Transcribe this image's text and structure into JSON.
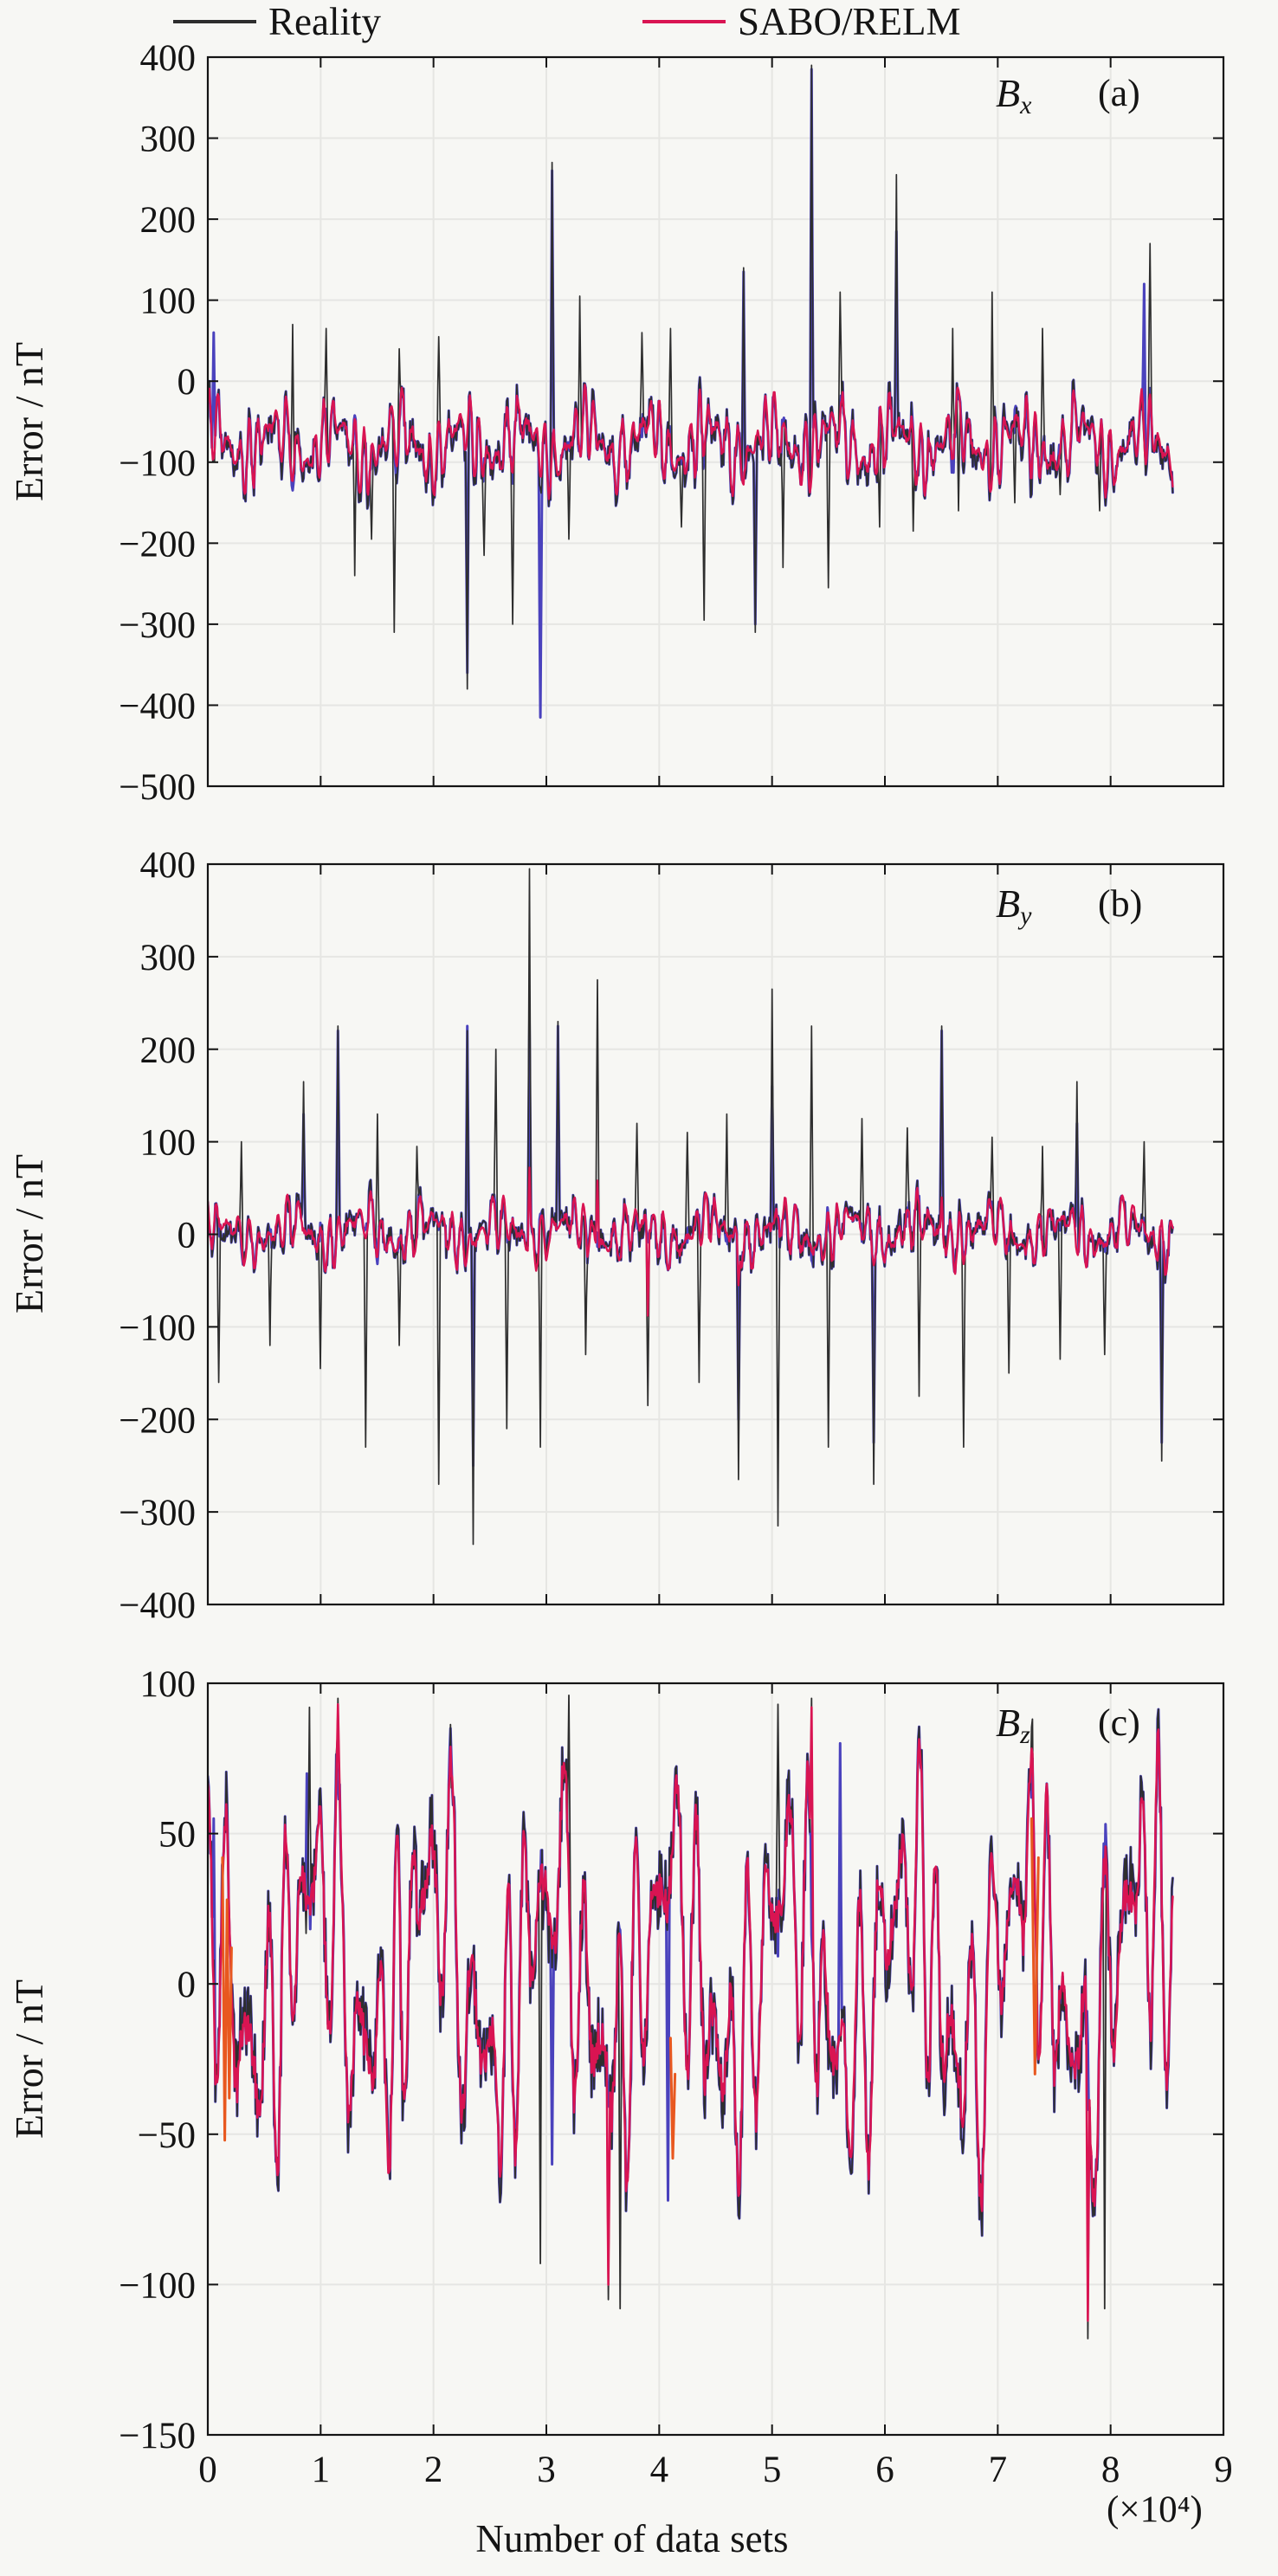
{
  "figure": {
    "background": "#f7f7f4",
    "axis_color": "#141414",
    "grid_color": "#e6e6e3",
    "ylabel": "Error / nT"
  },
  "legend": {
    "position": "top",
    "items": [
      {
        "label": "Reality",
        "color": "#2e2e2e"
      },
      {
        "label": "SABO/RELM",
        "color": "#d91452"
      }
    ]
  },
  "xaxis": {
    "label": "Number of data sets",
    "multiplier": "(×10⁴)",
    "ticks": [
      0,
      1,
      2,
      3,
      4,
      5,
      6,
      7,
      8,
      9
    ],
    "range": [
      0,
      9
    ],
    "data_xmax": 8.55
  },
  "chart_data": [
    {
      "type": "line",
      "panel": "a",
      "title_base": "B",
      "title_sub": "x",
      "panel_tag": "(a)",
      "ylim": [
        -500,
        400
      ],
      "yticks": [
        400,
        300,
        200,
        100,
        0,
        -100,
        -200,
        -300,
        -400,
        -500
      ],
      "xlim": [
        0,
        9
      ],
      "grid": true,
      "description": "Bx error: baseline oscillation around -75 nT (range ~0 to -160) shared by Reality and SABO/RELM; Reality and a hidden blue trace show sharp spikes up to +390 and down to -415 nT.",
      "series": [
        {
          "name": "hidden-blue",
          "color": "#4a42bd",
          "width": 3,
          "seed": 11,
          "mean": -78,
          "amp": 50,
          "period": 0.085,
          "phase": 0.3,
          "amp2": 24,
          "period2": 0.55,
          "phase2": 1.1,
          "mod_period": 0.33,
          "mod_phase": 0.7,
          "noise": 34,
          "noise_scale": 1,
          "amp_scale": 1,
          "clip": [
            -168,
            28
          ],
          "spikes": [
            [
              0.05,
              60
            ],
            [
              2.3,
              -360
            ],
            [
              2.95,
              -415
            ],
            [
              3.05,
              260
            ],
            [
              4.75,
              135
            ],
            [
              4.85,
              -300
            ],
            [
              5.35,
              385
            ],
            [
              6.1,
              185
            ],
            [
              8.3,
              120
            ]
          ]
        },
        {
          "name": "Reality",
          "color": "#2e2e2e",
          "width": 1.7,
          "seed": 11,
          "mean": -78,
          "amp": 50,
          "period": 0.085,
          "phase": 0.3,
          "amp2": 24,
          "period2": 0.55,
          "phase2": 1.1,
          "mod_period": 0.33,
          "mod_phase": 0.7,
          "noise": 34,
          "noise_scale": 1,
          "amp_scale": 1,
          "clip": [
            -168,
            28
          ],
          "spikes": [
            [
              0.75,
              70
            ],
            [
              1.05,
              65
            ],
            [
              1.3,
              -240
            ],
            [
              1.45,
              -195
            ],
            [
              1.65,
              -310
            ],
            [
              1.7,
              40
            ],
            [
              2.05,
              55
            ],
            [
              2.3,
              -380
            ],
            [
              2.45,
              -215
            ],
            [
              2.7,
              -300
            ],
            [
              3.05,
              270
            ],
            [
              3.2,
              -195
            ],
            [
              3.3,
              105
            ],
            [
              3.85,
              60
            ],
            [
              4.1,
              65
            ],
            [
              4.2,
              -180
            ],
            [
              4.4,
              -295
            ],
            [
              4.75,
              140
            ],
            [
              4.85,
              -310
            ],
            [
              5.1,
              -230
            ],
            [
              5.35,
              390
            ],
            [
              5.5,
              -255
            ],
            [
              5.6,
              110
            ],
            [
              5.95,
              -180
            ],
            [
              6.1,
              255
            ],
            [
              6.25,
              -185
            ],
            [
              6.6,
              65
            ],
            [
              6.65,
              -160
            ],
            [
              6.95,
              110
            ],
            [
              7.15,
              -150
            ],
            [
              7.4,
              65
            ],
            [
              7.55,
              -140
            ],
            [
              7.9,
              -160
            ],
            [
              8.35,
              170
            ]
          ]
        },
        {
          "name": "SABO/RELM",
          "color": "#d91452",
          "width": 2.4,
          "seed": 11,
          "mean": -76,
          "amp": 50,
          "period": 0.085,
          "phase": 0.3,
          "amp2": 24,
          "period2": 0.55,
          "phase2": 1.1,
          "mod_period": 0.33,
          "mod_phase": 0.7,
          "noise": 34,
          "noise_scale": 0.3,
          "amp_scale": 0.95,
          "clip": [
            -152,
            2
          ],
          "spikes": []
        }
      ]
    },
    {
      "type": "line",
      "panel": "b",
      "title_base": "B",
      "title_sub": "y",
      "panel_tag": "(b)",
      "ylim": [
        -400,
        400
      ],
      "yticks": [
        400,
        300,
        200,
        100,
        0,
        -100,
        -200,
        -300,
        -400
      ],
      "xlim": [
        0,
        9
      ],
      "grid": true,
      "description": "By error: baseline oscillation around 0 nT (±40); Reality and hidden blue trace spike to +395 / -335 nT.",
      "series": [
        {
          "name": "hidden-blue",
          "color": "#4a42bd",
          "width": 3,
          "seed": 22,
          "mean": 2,
          "amp": 27,
          "period": 0.09,
          "phase": 1.7,
          "amp2": 15,
          "period2": 0.62,
          "phase2": 0.4,
          "mod_period": 0.37,
          "mod_phase": 1.9,
          "noise": 26,
          "noise_scale": 1,
          "amp_scale": 1,
          "clip": [
            -72,
            66
          ],
          "spikes": [
            [
              0.85,
              130
            ],
            [
              1.15,
              220
            ],
            [
              2.3,
              225
            ],
            [
              2.35,
              -250
            ],
            [
              2.85,
              230
            ],
            [
              3.1,
              225
            ],
            [
              4.7,
              -200
            ],
            [
              5.0,
              160
            ],
            [
              5.9,
              -225
            ],
            [
              6.5,
              220
            ],
            [
              7.7,
              120
            ],
            [
              8.45,
              -225
            ]
          ]
        },
        {
          "name": "Reality",
          "color": "#2e2e2e",
          "width": 1.7,
          "seed": 22,
          "mean": 2,
          "amp": 27,
          "period": 0.09,
          "phase": 1.7,
          "amp2": 15,
          "period2": 0.62,
          "phase2": 0.4,
          "mod_period": 0.37,
          "mod_phase": 1.9,
          "noise": 26,
          "noise_scale": 1,
          "amp_scale": 1,
          "clip": [
            -72,
            66
          ],
          "spikes": [
            [
              0.1,
              -160
            ],
            [
              0.3,
              100
            ],
            [
              0.55,
              -120
            ],
            [
              0.85,
              165
            ],
            [
              1.0,
              -145
            ],
            [
              1.15,
              225
            ],
            [
              1.4,
              -230
            ],
            [
              1.5,
              130
            ],
            [
              1.7,
              -120
            ],
            [
              1.85,
              95
            ],
            [
              2.05,
              -270
            ],
            [
              2.3,
              220
            ],
            [
              2.35,
              -335
            ],
            [
              2.55,
              200
            ],
            [
              2.65,
              -210
            ],
            [
              2.85,
              395
            ],
            [
              2.95,
              -230
            ],
            [
              3.1,
              230
            ],
            [
              3.35,
              -130
            ],
            [
              3.45,
              275
            ],
            [
              3.8,
              120
            ],
            [
              3.9,
              -185
            ],
            [
              4.25,
              110
            ],
            [
              4.35,
              -160
            ],
            [
              4.6,
              130
            ],
            [
              4.7,
              -265
            ],
            [
              5.0,
              265
            ],
            [
              5.05,
              -315
            ],
            [
              5.35,
              225
            ],
            [
              5.5,
              -230
            ],
            [
              5.8,
              125
            ],
            [
              5.9,
              -270
            ],
            [
              6.2,
              115
            ],
            [
              6.3,
              -175
            ],
            [
              6.5,
              225
            ],
            [
              6.7,
              -230
            ],
            [
              6.95,
              105
            ],
            [
              7.1,
              -150
            ],
            [
              7.4,
              95
            ],
            [
              7.55,
              -135
            ],
            [
              7.7,
              165
            ],
            [
              7.95,
              -130
            ],
            [
              8.3,
              100
            ],
            [
              8.45,
              -245
            ]
          ]
        },
        {
          "name": "SABO/RELM",
          "color": "#d91452",
          "width": 2.4,
          "seed": 22,
          "mean": 2,
          "amp": 30,
          "period": 0.09,
          "phase": 1.7,
          "amp2": 15,
          "period2": 0.62,
          "phase2": 0.4,
          "mod_period": 0.37,
          "mod_phase": 1.9,
          "noise": 26,
          "noise_scale": 0.3,
          "amp_scale": 1,
          "clip": [
            -62,
            55
          ],
          "spikes": [
            [
              2.85,
              72
            ],
            [
              3.45,
              58
            ],
            [
              3.9,
              -88
            ],
            [
              4.7,
              -55
            ],
            [
              6.5,
              40
            ]
          ]
        }
      ]
    },
    {
      "type": "line",
      "panel": "c",
      "title_base": "B",
      "title_sub": "z",
      "panel_tag": "(c)",
      "ylim": [
        -150,
        100
      ],
      "yticks": [
        100,
        50,
        0,
        -50,
        -100,
        -150
      ],
      "xlim": [
        0,
        9
      ],
      "grid": true,
      "description": "Bz error: large shared oscillation ±90 nT; SABO/RELM tracks Reality closely; extremes +96 / -118 nT; short orange artefact segments near x=0.15, 4.1 and 7.3.",
      "series": [
        {
          "name": "hidden-blue",
          "color": "#4a42bd",
          "width": 3,
          "seed": 33,
          "mean": 4,
          "amp": 56,
          "period": 0.165,
          "phase": 0.9,
          "amp2": 30,
          "period2": 1.05,
          "phase2": 2.2,
          "mod_period": 0.52,
          "mod_phase": 0.3,
          "noise": 26,
          "noise_scale": 1,
          "amp_scale": 1,
          "clip": [
            -118,
            96
          ],
          "spikes": [
            [
              0.05,
              55
            ],
            [
              0.88,
              70
            ],
            [
              2.15,
              85
            ],
            [
              3.05,
              -60
            ],
            [
              4.08,
              -72
            ],
            [
              5.6,
              80
            ],
            [
              7.3,
              62
            ]
          ]
        },
        {
          "name": "Reality",
          "color": "#2e2e2e",
          "width": 1.8,
          "seed": 33,
          "mean": 4,
          "amp": 56,
          "period": 0.165,
          "phase": 0.9,
          "amp2": 30,
          "period2": 1.05,
          "phase2": 2.2,
          "mod_period": 0.52,
          "mod_phase": 0.3,
          "noise": 26,
          "noise_scale": 1,
          "amp_scale": 1,
          "clip": [
            -116,
            95
          ],
          "spikes": [
            [
              0.9,
              92
            ],
            [
              1.15,
              95
            ],
            [
              2.95,
              -93
            ],
            [
              3.2,
              96
            ],
            [
              3.55,
              -105
            ],
            [
              3.65,
              -108
            ],
            [
              5.05,
              93
            ],
            [
              5.35,
              95
            ],
            [
              7.8,
              -118
            ],
            [
              7.95,
              -108
            ]
          ]
        },
        {
          "name": "SABO/RELM",
          "color": "#d91452",
          "width": 2.6,
          "seed": 33,
          "mean": 4,
          "amp": 56,
          "period": 0.165,
          "phase": 0.9,
          "amp2": 30,
          "period2": 1.05,
          "phase2": 2.2,
          "mod_period": 0.52,
          "mod_phase": 0.3,
          "noise": 26,
          "noise_scale": 0.45,
          "amp_scale": 0.98,
          "clip": [
            -112,
            93
          ],
          "spikes": [
            [
              1.15,
              93
            ],
            [
              3.55,
              -100
            ],
            [
              5.35,
              92
            ],
            [
              7.8,
              -112
            ]
          ]
        },
        {
          "name": "orange-artefact",
          "color": "#e8581f",
          "width": 3,
          "segments": [
            [
              [
                0.13,
                42
              ],
              [
                0.15,
                -52
              ],
              [
                0.17,
                28
              ],
              [
                0.19,
                -38
              ],
              [
                0.21,
                12
              ]
            ],
            [
              [
                4.1,
                -18
              ],
              [
                4.12,
                -58
              ],
              [
                4.14,
                -30
              ]
            ],
            [
              [
                7.3,
                55
              ],
              [
                7.33,
                -30
              ],
              [
                7.36,
                42
              ]
            ]
          ]
        }
      ]
    }
  ]
}
